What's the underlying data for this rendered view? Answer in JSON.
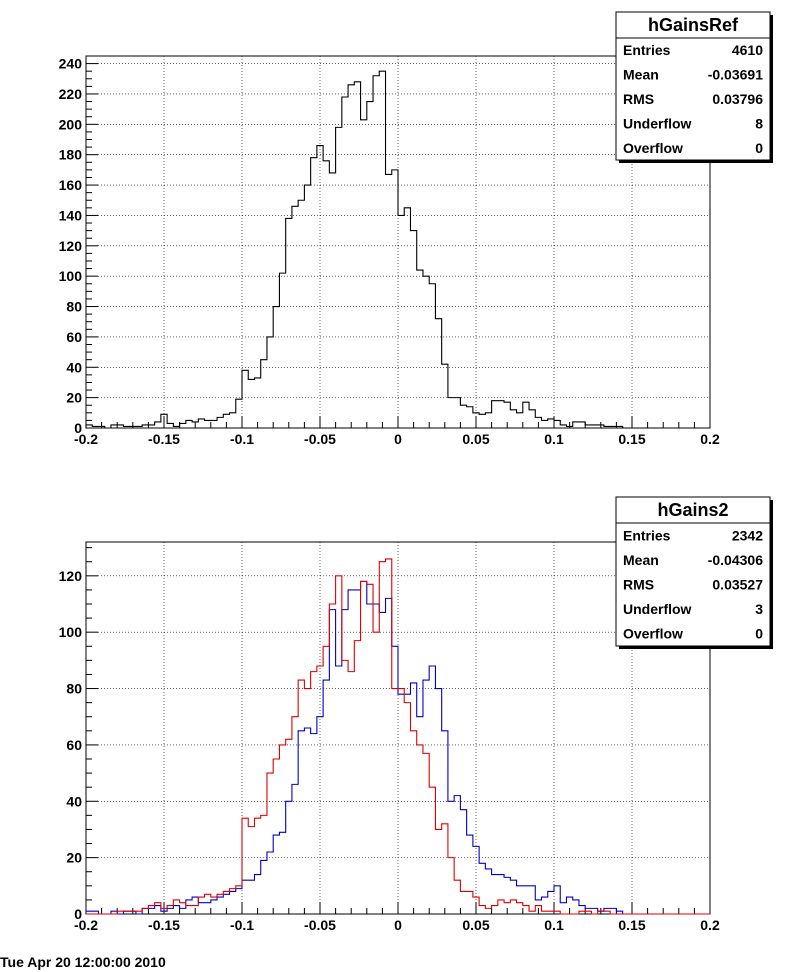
{
  "chart_data": [
    {
      "type": "histogram",
      "xlim": [
        -0.2,
        0.2
      ],
      "ylim": [
        0,
        245
      ],
      "x_ticks": [
        -0.2,
        -0.15,
        -0.1,
        -0.05,
        0,
        0.05,
        0.1,
        0.15,
        0.2
      ],
      "x_tick_labels": [
        "-0.2",
        "-0.15",
        "-0.1",
        "-0.05",
        "0",
        "0.05",
        "0.1",
        "0.15",
        "0.2"
      ],
      "y_ticks": [
        0,
        20,
        40,
        60,
        80,
        100,
        120,
        140,
        160,
        180,
        200,
        220,
        240
      ],
      "y_tick_labels": [
        "0",
        "20",
        "40",
        "60",
        "80",
        "100",
        "120",
        "140",
        "160",
        "180",
        "200",
        "220",
        "240"
      ],
      "grid": true,
      "bins": 100,
      "series": [
        {
          "color": "#000000",
          "values": [
            2,
            1,
            1,
            0,
            2,
            2,
            1,
            1,
            1,
            2,
            2,
            4,
            9,
            3,
            1,
            3,
            5,
            4,
            6,
            5,
            5,
            7,
            9,
            10,
            19,
            38,
            32,
            33,
            45,
            60,
            80,
            102,
            138,
            146,
            150,
            160,
            178,
            186,
            176,
            168,
            198,
            218,
            226,
            228,
            203,
            215,
            232,
            235,
            167,
            170,
            140,
            145,
            130,
            104,
            100,
            95,
            72,
            42,
            20,
            20,
            15,
            14,
            10,
            9,
            10,
            18,
            18,
            17,
            12,
            10,
            17,
            12,
            7,
            5,
            6,
            5,
            2,
            1,
            4,
            4,
            2,
            2,
            2,
            1,
            1,
            1,
            0,
            0,
            0,
            0,
            0,
            0,
            0,
            0,
            0,
            0,
            0,
            0,
            0,
            0
          ]
        }
      ],
      "stats_box": {
        "title": "hGainsRef",
        "rows": [
          {
            "label": "Entries",
            "value": "4610"
          },
          {
            "label": "Mean",
            "value": "-0.03691"
          },
          {
            "label": "RMS",
            "value": "0.03796"
          },
          {
            "label": "Underflow",
            "value": "8"
          },
          {
            "label": "Overflow",
            "value": "0"
          }
        ]
      }
    },
    {
      "type": "histogram",
      "xlim": [
        -0.2,
        0.2
      ],
      "ylim": [
        0,
        132
      ],
      "x_ticks": [
        -0.2,
        -0.15,
        -0.1,
        -0.05,
        0,
        0.05,
        0.1,
        0.15,
        0.2
      ],
      "x_tick_labels": [
        "-0.2",
        "-0.15",
        "-0.1",
        "-0.05",
        "0",
        "0.05",
        "0.1",
        "0.15",
        "0.2"
      ],
      "y_ticks": [
        0,
        20,
        40,
        60,
        80,
        100,
        120
      ],
      "y_tick_labels": [
        "0",
        "20",
        "40",
        "60",
        "80",
        "100",
        "120"
      ],
      "grid": true,
      "bins": 100,
      "series": [
        {
          "color": "#0000cc",
          "values": [
            1,
            1,
            0,
            0,
            1,
            0,
            1,
            1,
            0,
            2,
            2,
            3,
            1,
            2,
            3,
            2,
            5,
            6,
            4,
            4,
            5,
            6,
            7,
            8,
            9,
            12,
            12,
            14,
            19,
            22,
            28,
            29,
            40,
            46,
            65,
            66,
            64,
            70,
            83,
            108,
            88,
            108,
            115,
            115,
            118,
            110,
            110,
            107,
            112,
            95,
            78,
            78,
            82,
            70,
            83,
            88,
            80,
            65,
            40,
            42,
            37,
            28,
            24,
            18,
            16,
            14,
            14,
            13,
            12,
            10,
            10,
            10,
            5,
            6,
            8,
            10,
            4,
            6,
            5,
            3,
            2,
            2,
            1,
            2,
            2,
            1,
            0,
            0,
            0,
            0,
            0,
            0,
            0,
            0,
            0,
            0,
            0,
            0,
            0,
            0
          ]
        },
        {
          "color": "#dd0000",
          "values": [
            0,
            0,
            0,
            0,
            0,
            1,
            1,
            1,
            1,
            2,
            3,
            4,
            2,
            3,
            5,
            4,
            3,
            3,
            6,
            7,
            6,
            7,
            8,
            9,
            10,
            34,
            31,
            34,
            35,
            50,
            55,
            60,
            62,
            70,
            83,
            80,
            86,
            88,
            95,
            110,
            120,
            90,
            86,
            97,
            118,
            117,
            100,
            125,
            126,
            80,
            80,
            75,
            65,
            60,
            57,
            45,
            30,
            32,
            20,
            12,
            8,
            8,
            6,
            3,
            2,
            3,
            5,
            4,
            5,
            4,
            3,
            1,
            3,
            1,
            1,
            1,
            0,
            0,
            0,
            1,
            1,
            0,
            1,
            1,
            0,
            0,
            0,
            0,
            0,
            0,
            0,
            0,
            0,
            0,
            0,
            0,
            0,
            0,
            0,
            0
          ]
        }
      ],
      "stats_box": {
        "title": "hGains2",
        "rows": [
          {
            "label": "Entries",
            "value": "2342"
          },
          {
            "label": "Mean",
            "value": "-0.04306"
          },
          {
            "label": "RMS",
            "value": "0.03527"
          },
          {
            "label": "Underflow",
            "value": "3"
          },
          {
            "label": "Overflow",
            "value": "0"
          }
        ]
      }
    }
  ],
  "footer_text": "Tue Apr 20 12:00:00 2010"
}
